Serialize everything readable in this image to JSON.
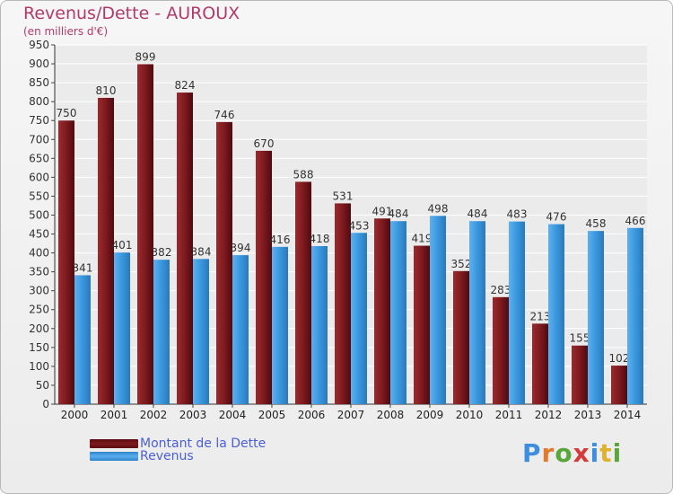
{
  "title": "Revenus/Dette - AUROUX",
  "subtitle": "(en milliers d'€)",
  "colors": {
    "dette": "#7d1a1f",
    "revenus": "#3a97dc",
    "title": "#b23a6a",
    "legend_text": "#4a5fd6"
  },
  "legend": [
    {
      "label": "Montant de la Dette",
      "color": "#7d1a1f"
    },
    {
      "label": "Revenus",
      "color": "#3a97dc"
    }
  ],
  "logo": {
    "letters": [
      "P",
      "r",
      "o",
      "x",
      "i",
      "t",
      "i"
    ]
  },
  "chart_data": {
    "type": "bar",
    "title": "Revenus/Dette - AUROUX",
    "ylabel": "(en milliers d'€)",
    "xlabel": "",
    "categories": [
      "2000",
      "2001",
      "2002",
      "2003",
      "2004",
      "2005",
      "2006",
      "2007",
      "2008",
      "2009",
      "2010",
      "2011",
      "2012",
      "2013",
      "2014"
    ],
    "series": [
      {
        "name": "Montant de la Dette",
        "values": [
          750,
          810,
          899,
          824,
          746,
          670,
          588,
          531,
          491,
          419,
          352,
          283,
          213,
          155,
          102
        ]
      },
      {
        "name": "Revenus",
        "values": [
          341,
          401,
          382,
          384,
          394,
          416,
          418,
          453,
          484,
          498,
          484,
          483,
          476,
          458,
          466
        ]
      }
    ],
    "ylim": [
      0,
      950
    ],
    "ytick_step": 50,
    "grid": true,
    "legend_position": "bottom-left"
  }
}
